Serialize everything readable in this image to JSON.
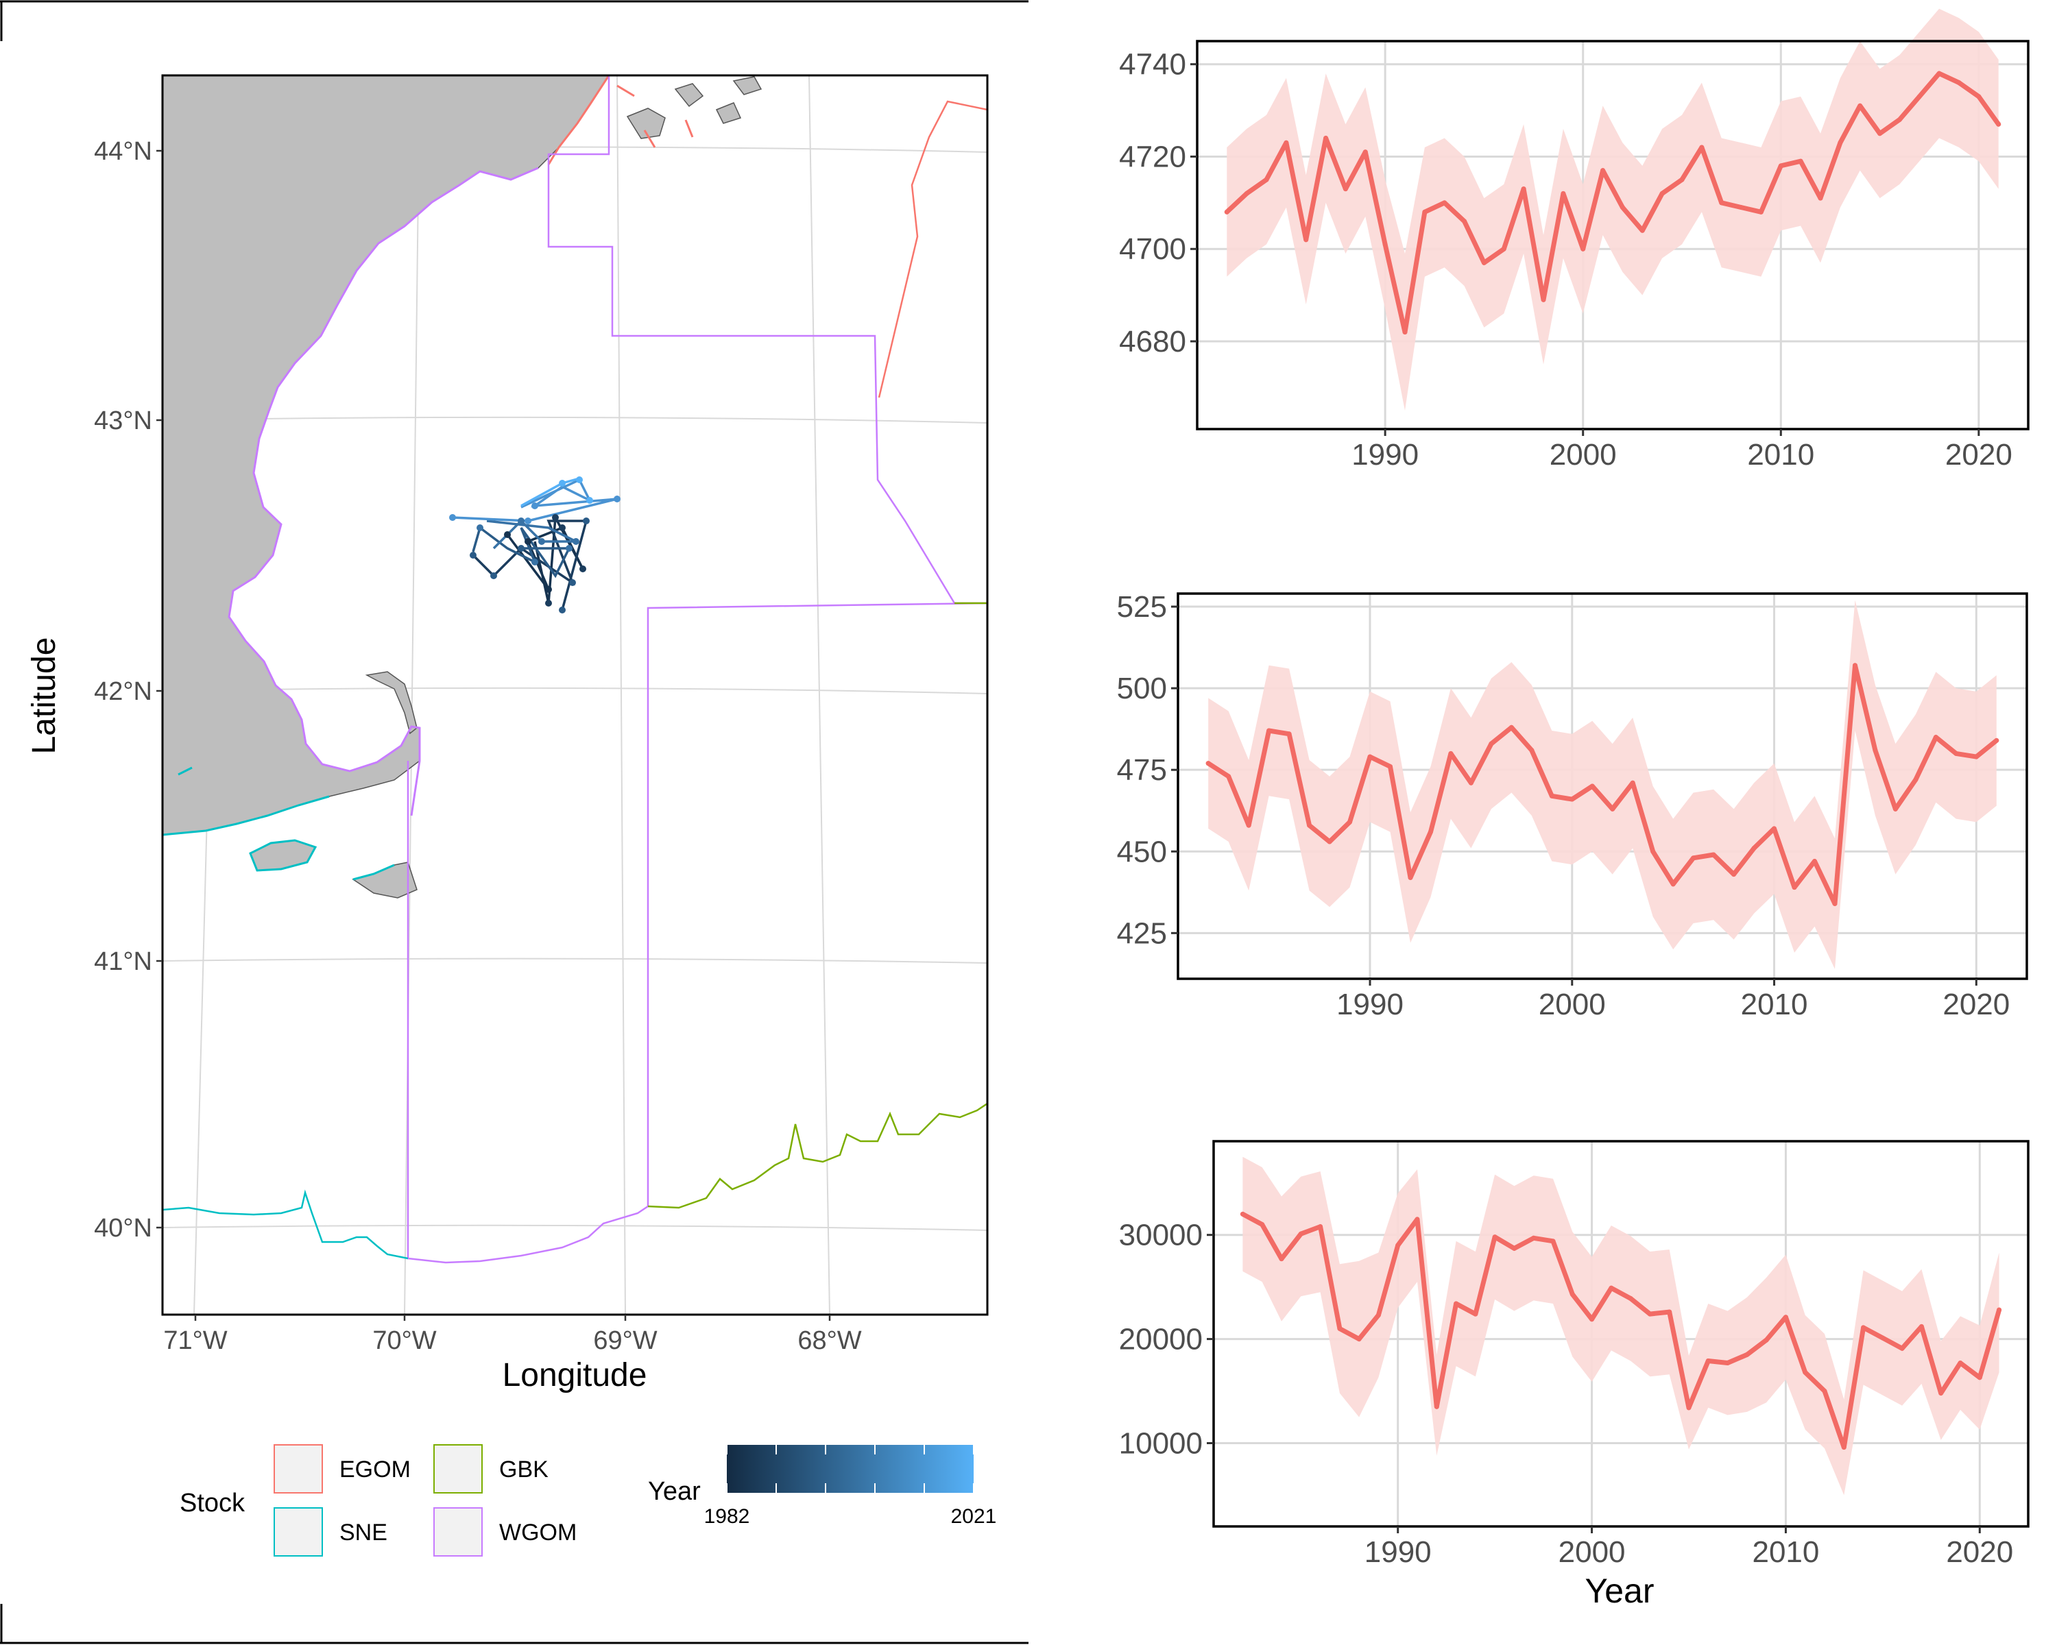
{
  "colors": {
    "land": "#BEBEBE",
    "grid": "#D9D9D9",
    "line": "#F26B65",
    "band": "#FBD9D7",
    "egom": "#F8766D",
    "gbk": "#7CAE00",
    "sne": "#00BFC4",
    "wgom": "#C77CFF",
    "year_low": "#132B43",
    "year_high": "#56B1F7"
  },
  "map": {
    "xlabel": "Longitude",
    "ylabel": "Latitude",
    "lon_ticks": [
      "71°W",
      "70°W",
      "69°W",
      "68°W"
    ],
    "lat_ticks": [
      "44°N",
      "43°N",
      "42°N",
      "41°N",
      "40°N"
    ]
  },
  "legend": {
    "stock_title": "Stock",
    "stocks": [
      {
        "key": "EGOM",
        "label": "EGOM",
        "color": "#F8766D"
      },
      {
        "key": "GBK",
        "label": "GBK",
        "color": "#7CAE00"
      },
      {
        "key": "SNE",
        "label": "SNE",
        "color": "#00BFC4"
      },
      {
        "key": "WGOM",
        "label": "WGOM",
        "color": "#C77CFF"
      }
    ],
    "year_title": "Year",
    "year_min": "1982",
    "year_max": "2021"
  },
  "chart_data": [
    {
      "type": "line",
      "title": "",
      "xlabel": "",
      "ylabel": "",
      "xlim": [
        1980.5,
        2022.5
      ],
      "ylim": [
        4661,
        4745
      ],
      "xticks": [
        1990,
        2000,
        2010,
        2020
      ],
      "yticks": [
        4680,
        4700,
        4720,
        4740
      ],
      "x": [
        1982,
        1983,
        1984,
        1985,
        1986,
        1987,
        1988,
        1989,
        1990,
        1991,
        1992,
        1993,
        1994,
        1995,
        1996,
        1997,
        1998,
        1999,
        2000,
        2001,
        2002,
        2003,
        2004,
        2005,
        2006,
        2007,
        2008,
        2009,
        2010,
        2011,
        2012,
        2013,
        2014,
        2015,
        2016,
        2017,
        2018,
        2019,
        2020,
        2021
      ],
      "series": [
        {
          "values": [
            4708,
            4712,
            4715,
            4723,
            4702,
            4724,
            4713,
            4721,
            4701,
            4682,
            4708,
            4710,
            4706,
            4697,
            4700,
            4713,
            4689,
            4712,
            4700,
            4717,
            4709,
            4704,
            4712,
            4715,
            4722,
            4710,
            4709,
            4708,
            4718,
            4719,
            4711,
            4723,
            4731,
            4725,
            4728,
            4733,
            4738,
            4736,
            4733,
            4727
          ],
          "lower": [
            4694,
            4698,
            4701,
            4709,
            4688,
            4710,
            4699,
            4707,
            4687,
            4665,
            4694,
            4696,
            4692,
            4683,
            4686,
            4699,
            4675,
            4698,
            4686,
            4703,
            4695,
            4690,
            4698,
            4701,
            4708,
            4696,
            4695,
            4694,
            4704,
            4705,
            4697,
            4709,
            4717,
            4711,
            4714,
            4719,
            4724,
            4722,
            4719,
            4713
          ],
          "upper": [
            4722,
            4726,
            4729,
            4737,
            4716,
            4738,
            4727,
            4735,
            4715,
            4699,
            4722,
            4724,
            4720,
            4711,
            4714,
            4727,
            4703,
            4726,
            4714,
            4731,
            4723,
            4718,
            4726,
            4729,
            4736,
            4724,
            4723,
            4722,
            4732,
            4733,
            4725,
            4737,
            4745,
            4739,
            4742,
            4747,
            4752,
            4750,
            4747,
            4741
          ]
        }
      ]
    },
    {
      "type": "line",
      "title": "",
      "xlabel": "",
      "ylabel": "",
      "xlim": [
        1980.5,
        2022.5
      ],
      "ylim": [
        411,
        529
      ],
      "xticks": [
        1990,
        2000,
        2010,
        2020
      ],
      "yticks": [
        425,
        450,
        475,
        500,
        525
      ],
      "x": [
        1982,
        1983,
        1984,
        1985,
        1986,
        1987,
        1988,
        1989,
        1990,
        1991,
        1992,
        1993,
        1994,
        1995,
        1996,
        1997,
        1998,
        1999,
        2000,
        2001,
        2002,
        2003,
        2004,
        2005,
        2006,
        2007,
        2008,
        2009,
        2010,
        2011,
        2012,
        2013,
        2014,
        2015,
        2016,
        2017,
        2018,
        2019,
        2020,
        2021
      ],
      "series": [
        {
          "values": [
            477,
            473,
            458,
            487,
            486,
            458,
            453,
            459,
            479,
            476,
            442,
            456,
            480,
            471,
            483,
            488,
            481,
            467,
            466,
            470,
            463,
            471,
            450,
            440,
            448,
            449,
            443,
            451,
            457,
            439,
            447,
            434,
            507,
            481,
            463,
            472,
            485,
            480,
            479,
            484
          ],
          "lower": [
            457,
            453,
            438,
            467,
            466,
            438,
            433,
            439,
            459,
            456,
            422,
            436,
            460,
            451,
            463,
            468,
            461,
            447,
            446,
            450,
            443,
            451,
            430,
            420,
            428,
            429,
            423,
            431,
            437,
            419,
            427,
            414,
            487,
            461,
            443,
            452,
            465,
            460,
            459,
            464
          ],
          "upper": [
            497,
            493,
            478,
            507,
            506,
            478,
            473,
            479,
            499,
            496,
            462,
            476,
            500,
            491,
            503,
            508,
            501,
            487,
            486,
            490,
            483,
            491,
            470,
            460,
            468,
            469,
            463,
            471,
            477,
            459,
            467,
            454,
            527,
            501,
            483,
            492,
            505,
            500,
            499,
            504
          ]
        }
      ]
    },
    {
      "type": "line",
      "title": "",
      "xlabel": "Year",
      "ylabel": "",
      "xlim": [
        1980.5,
        2022.5
      ],
      "ylim": [
        2000,
        39000
      ],
      "xticks": [
        1990,
        2000,
        2010,
        2020
      ],
      "yticks": [
        10000,
        20000,
        30000
      ],
      "x": [
        1982,
        1983,
        1984,
        1985,
        1986,
        1987,
        1988,
        1989,
        1990,
        1991,
        1992,
        1993,
        1994,
        1995,
        1996,
        1997,
        1998,
        1999,
        2000,
        2001,
        2002,
        2003,
        2004,
        2005,
        2006,
        2007,
        2008,
        2009,
        2010,
        2011,
        2012,
        2013,
        2014,
        2015,
        2016,
        2017,
        2018,
        2019,
        2020,
        2021
      ],
      "series": [
        {
          "values": [
            32000,
            31000,
            27700,
            30100,
            30800,
            21000,
            20000,
            22300,
            29000,
            31500,
            13500,
            23400,
            22400,
            29800,
            28700,
            29700,
            29400,
            24300,
            21900,
            24900,
            23900,
            22400,
            22600,
            13400,
            17900,
            17700,
            18500,
            19900,
            22100,
            16800,
            15000,
            9600,
            21100,
            20100,
            19100,
            21200,
            14800,
            17700,
            16300,
            22800
          ],
          "lower": [
            26500,
            25500,
            21700,
            24100,
            24500,
            14800,
            12500,
            16300,
            23000,
            25500,
            8800,
            17400,
            16400,
            23800,
            22700,
            23700,
            23400,
            18300,
            15900,
            18900,
            17900,
            16400,
            16600,
            9400,
            13400,
            12700,
            13000,
            13900,
            16100,
            11300,
            9500,
            5000,
            15600,
            14600,
            13600,
            15700,
            10300,
            13200,
            11300,
            16800
          ],
          "upper": [
            37500,
            36500,
            33700,
            35600,
            36100,
            27200,
            27500,
            28300,
            34000,
            36300,
            18500,
            29400,
            28400,
            35800,
            34700,
            35700,
            35400,
            30300,
            27900,
            30900,
            29900,
            28400,
            28600,
            18400,
            23400,
            22700,
            24000,
            25900,
            28100,
            22300,
            20500,
            14200,
            26600,
            25600,
            24600,
            26700,
            19800,
            22200,
            21300,
            28300
          ]
        }
      ]
    }
  ]
}
